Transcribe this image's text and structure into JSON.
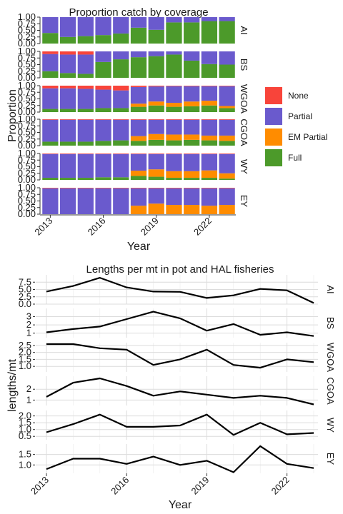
{
  "chart_data": [
    {
      "type": "bar",
      "stacked": true,
      "title": "Proportion catch by coverage",
      "xlabel": "Year",
      "ylabel": "Proportion",
      "ylim": [
        0,
        1
      ],
      "yticks": [
        "0.00",
        "0.25",
        "0.50",
        "0.75",
        "1.00"
      ],
      "xticks": [
        2013,
        2016,
        2019,
        2022
      ],
      "years": [
        2013,
        2014,
        2015,
        2016,
        2017,
        2018,
        2019,
        2020,
        2021,
        2022,
        2023
      ],
      "legend_position": "right",
      "legend": [
        {
          "name": "None",
          "color": "#F8443A"
        },
        {
          "name": "Partial",
          "color": "#6A5ACD"
        },
        {
          "name": "EM Partial",
          "color": "#FF8C00"
        },
        {
          "name": "Full",
          "color": "#4C9A2A"
        }
      ],
      "panels": [
        {
          "name": "AI",
          "None": [
            0,
            0,
            0,
            0,
            0,
            0,
            0,
            0,
            0,
            0,
            0
          ],
          "EM Partial": [
            0,
            0,
            0,
            0,
            0,
            0,
            0,
            0,
            0,
            0,
            0
          ],
          "Full": [
            0.4,
            0.25,
            0.28,
            0.32,
            0.38,
            0.6,
            0.52,
            0.8,
            0.8,
            0.85,
            0.85
          ]
        },
        {
          "name": "BS",
          "None": [
            0.1,
            0.12,
            0.12,
            0,
            0,
            0,
            0,
            0,
            0,
            0,
            0
          ],
          "EM Partial": [
            0,
            0,
            0,
            0,
            0,
            0,
            0,
            0,
            0,
            0,
            0
          ],
          "Full": [
            0.25,
            0.18,
            0.15,
            0.6,
            0.7,
            0.78,
            0.82,
            0.88,
            0.65,
            0.52,
            0.5
          ]
        },
        {
          "name": "WGOA",
          "None": [
            0.1,
            0.1,
            0.12,
            0.15,
            0.18,
            0.05,
            0.03,
            0.02,
            0.02,
            0.02,
            0.02
          ],
          "EM Partial": [
            0,
            0,
            0,
            0,
            0,
            0.12,
            0.15,
            0.15,
            0.18,
            0.18,
            0.08
          ],
          "Full": [
            0.12,
            0.12,
            0.12,
            0.15,
            0.15,
            0.2,
            0.25,
            0.2,
            0.22,
            0.25,
            0.15
          ]
        },
        {
          "name": "CGOA",
          "None": [
            0.02,
            0.02,
            0.02,
            0.02,
            0.02,
            0.02,
            0.02,
            0.02,
            0.02,
            0.02,
            0.02
          ],
          "EM Partial": [
            0,
            0,
            0,
            0,
            0,
            0.18,
            0.22,
            0.22,
            0.2,
            0.18,
            0.2
          ],
          "Full": [
            0.15,
            0.15,
            0.15,
            0.18,
            0.2,
            0.18,
            0.22,
            0.2,
            0.22,
            0.2,
            0.18
          ]
        },
        {
          "name": "WY",
          "None": [
            0.02,
            0.02,
            0.02,
            0.02,
            0.02,
            0.02,
            0.02,
            0.02,
            0.02,
            0.02,
            0.02
          ],
          "EM Partial": [
            0,
            0,
            0,
            0,
            0,
            0.2,
            0.28,
            0.25,
            0.25,
            0.28,
            0.2
          ],
          "Full": [
            0.08,
            0.08,
            0.08,
            0.1,
            0.1,
            0.15,
            0.12,
            0.08,
            0.08,
            0.08,
            0.05
          ]
        },
        {
          "name": "EY",
          "None": [
            0.02,
            0.02,
            0.02,
            0.02,
            0.02,
            0.02,
            0.02,
            0.02,
            0.02,
            0.02,
            0.02
          ],
          "EM Partial": [
            0,
            0,
            0,
            0,
            0,
            0.32,
            0.4,
            0.35,
            0.35,
            0.32,
            0.35
          ],
          "Full": [
            0,
            0,
            0,
            0,
            0,
            0,
            0,
            0,
            0,
            0,
            0
          ]
        }
      ]
    },
    {
      "type": "line",
      "title": "Lengths per mt in pot and HAL fisheries",
      "xlabel": "Year",
      "ylabel": "lengths/mt",
      "xticks": [
        2013,
        2016,
        2019,
        2022
      ],
      "years": [
        2013,
        2014,
        2015,
        2016,
        2017,
        2018,
        2019,
        2020,
        2021,
        2022,
        2023
      ],
      "panels": [
        {
          "name": "AI",
          "ylim": [
            0,
            10
          ],
          "yticks": [
            "0.0",
            "2.5",
            "5.0",
            "7.5"
          ],
          "values": [
            4.3,
            6.2,
            9.0,
            5.7,
            4.3,
            4.2,
            2.1,
            3.0,
            5.2,
            4.7,
            0.4
          ]
        },
        {
          "name": "BS",
          "ylim": [
            0.45,
            4.0
          ],
          "yticks": [
            "1",
            "2",
            "3"
          ],
          "values": [
            1.1,
            1.5,
            1.8,
            2.7,
            3.6,
            2.8,
            1.3,
            2.1,
            0.8,
            1.1,
            0.65
          ]
        },
        {
          "name": "WGOA",
          "ylim": [
            0.6,
            2.7
          ],
          "yticks": [
            "1.0",
            "1.5",
            "2.0",
            "2.5"
          ],
          "values": [
            2.6,
            2.6,
            2.3,
            2.2,
            1.1,
            1.5,
            2.2,
            1.1,
            0.9,
            1.5,
            1.3
          ]
        },
        {
          "name": "CGOA",
          "ylim": [
            0.5,
            3.2
          ],
          "yticks": [
            "1",
            "2"
          ],
          "values": [
            1.3,
            2.6,
            3.0,
            2.3,
            1.4,
            1.8,
            1.5,
            1.2,
            1.4,
            1.2,
            0.6
          ]
        },
        {
          "name": "WY",
          "ylim": [
            0.25,
            2.4
          ],
          "yticks": [
            "0.5",
            "1.0",
            "1.5",
            "2.0"
          ],
          "values": [
            0.8,
            1.4,
            2.1,
            1.2,
            1.2,
            1.3,
            2.1,
            0.6,
            1.5,
            0.65,
            0.75
          ]
        },
        {
          "name": "EY",
          "ylim": [
            0.6,
            2.0
          ],
          "yticks": [
            "1.0",
            "1.5"
          ],
          "values": [
            0.8,
            1.3,
            1.3,
            1.05,
            1.4,
            1.0,
            1.2,
            0.65,
            1.9,
            1.05,
            0.85
          ]
        }
      ]
    }
  ]
}
